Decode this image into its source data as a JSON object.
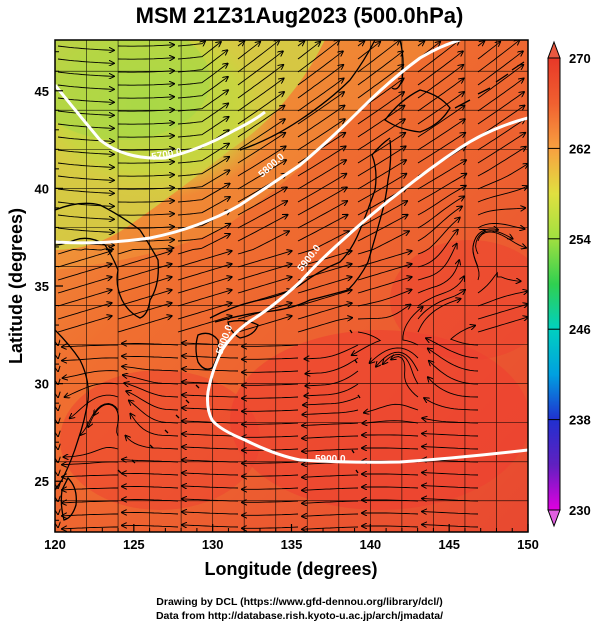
{
  "title": "MSM 21Z31Aug2023 (500.0hPa)",
  "xlabel": "Longitude (degrees)",
  "ylabel": "Latitude  (degrees)",
  "x_ticks": [
    "120",
    "125",
    "130",
    "135",
    "140",
    "145",
    "150"
  ],
  "y_ticks": [
    "25",
    "30",
    "35",
    "40",
    "45"
  ],
  "colorbar": {
    "ticks": [
      "270",
      "262",
      "254",
      "246",
      "238",
      "230"
    ],
    "min": 230,
    "max": 270,
    "stops": [
      "#e000e0",
      "#6020c0",
      "#2030d0",
      "#00a0e0",
      "#00d0c0",
      "#30d050",
      "#a0e040",
      "#e0e040",
      "#f8a040",
      "#f06030",
      "#e83828"
    ]
  },
  "contours": [
    {
      "label": "5700.0"
    },
    {
      "label": "5800.0"
    },
    {
      "label": "5900.0"
    },
    {
      "label": "5900.0"
    },
    {
      "label": "5900.0"
    }
  ],
  "credits": {
    "line1": "Drawing by DCL (https://www.gfd-dennou.org/library/dcl/)",
    "line2": "Data from http://database.rish.kyoto-u.ac.jp/arch/jmadata/"
  }
}
